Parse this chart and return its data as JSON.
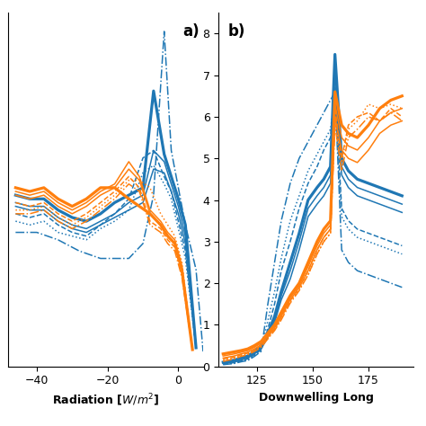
{
  "panel_a_label": "a)",
  "panel_b_label": "b)",
  "xlabel_a": "Radiation [$W/m^2$]",
  "xlabel_b": "Downwelling Long",
  "ylim_a": [
    -0.3,
    9.2
  ],
  "ylim_b": [
    0,
    8.5
  ],
  "xlim_a": [
    -48,
    7
  ],
  "xlim_b": [
    108,
    195
  ],
  "yticks_b": [
    0,
    1,
    2,
    3,
    4,
    5,
    6,
    7,
    8
  ],
  "xticks_a": [
    -40,
    -20,
    0
  ],
  "xticks_b": [
    125,
    150,
    175
  ],
  "blue": "#1f77b4",
  "orange": "#ff7f0e",
  "lw_thick": 2.3,
  "lw_thin": 1.1,
  "panel_a_lines": [
    {
      "color": "blue",
      "style": "solid",
      "thick": true,
      "x": [
        -46,
        -42,
        -38,
        -34,
        -30,
        -26,
        -22,
        -18,
        -14,
        -10,
        -7,
        -4,
        -2,
        0,
        2,
        5
      ],
      "y": [
        4.3,
        4.2,
        4.2,
        3.9,
        3.7,
        3.6,
        3.8,
        4.1,
        4.3,
        4.5,
        7.1,
        5.4,
        4.8,
        4.2,
        3.5,
        0.2
      ]
    },
    {
      "color": "blue",
      "style": "solid",
      "thick": false,
      "x": [
        -46,
        -42,
        -38,
        -34,
        -30,
        -26,
        -22,
        -18,
        -14,
        -10,
        -7,
        -4,
        -2,
        0,
        2,
        5
      ],
      "y": [
        4.1,
        4.0,
        4.0,
        3.7,
        3.5,
        3.4,
        3.6,
        3.8,
        4.1,
        4.3,
        5.5,
        5.2,
        4.6,
        4.0,
        3.2,
        0.2
      ]
    },
    {
      "color": "blue",
      "style": "solid",
      "thick": false,
      "x": [
        -46,
        -42,
        -38,
        -34,
        -30,
        -26,
        -22,
        -18,
        -14,
        -10,
        -7,
        -4,
        -2,
        0,
        2,
        5
      ],
      "y": [
        4.0,
        3.9,
        3.9,
        3.6,
        3.4,
        3.3,
        3.5,
        3.7,
        3.9,
        4.1,
        5.0,
        4.9,
        4.4,
        3.8,
        3.0,
        0.2
      ]
    },
    {
      "color": "blue",
      "style": "dashed",
      "thick": false,
      "x": [
        -46,
        -42,
        -38,
        -34,
        -30,
        -26,
        -22,
        -18,
        -14,
        -10,
        -7,
        -4,
        -2,
        0,
        2,
        5
      ],
      "y": [
        3.8,
        3.7,
        3.8,
        3.5,
        3.3,
        3.2,
        3.5,
        3.8,
        4.2,
        5.3,
        5.5,
        4.8,
        4.4,
        3.6,
        2.8,
        0.2
      ]
    },
    {
      "color": "blue",
      "style": "dotted",
      "thick": false,
      "x": [
        -46,
        -42,
        -38,
        -34,
        -30,
        -26,
        -22,
        -18,
        -14,
        -10,
        -7,
        -4,
        -2,
        0,
        2,
        5
      ],
      "y": [
        3.6,
        3.5,
        3.6,
        3.3,
        3.2,
        3.1,
        3.4,
        3.6,
        3.9,
        4.9,
        5.1,
        4.6,
        4.2,
        3.4,
        2.6,
        0.2
      ]
    },
    {
      "color": "blue",
      "style": "dashdot",
      "thick": false,
      "x": [
        -46,
        -40,
        -34,
        -28,
        -22,
        -18,
        -14,
        -10,
        -7,
        -4,
        -2,
        0,
        2,
        5,
        7
      ],
      "y": [
        3.3,
        3.3,
        3.1,
        2.8,
        2.6,
        2.6,
        2.6,
        3.0,
        4.3,
        8.7,
        5.5,
        4.5,
        3.5,
        2.3,
        0.1
      ]
    },
    {
      "color": "orange",
      "style": "solid",
      "thick": true,
      "x": [
        -46,
        -42,
        -38,
        -34,
        -30,
        -26,
        -22,
        -18,
        -14,
        -11,
        -8,
        -5,
        -3,
        -1,
        1,
        4
      ],
      "y": [
        4.5,
        4.4,
        4.5,
        4.2,
        4.0,
        4.2,
        4.5,
        4.5,
        4.2,
        4.0,
        3.8,
        3.5,
        3.2,
        3.0,
        2.3,
        0.15
      ]
    },
    {
      "color": "orange",
      "style": "solid",
      "thick": false,
      "x": [
        -46,
        -42,
        -38,
        -34,
        -30,
        -26,
        -22,
        -18,
        -14,
        -11,
        -8,
        -5,
        -3,
        -1,
        1,
        4
      ],
      "y": [
        4.4,
        4.3,
        4.4,
        4.1,
        3.9,
        4.1,
        4.4,
        4.6,
        5.2,
        4.8,
        3.9,
        3.6,
        3.3,
        3.1,
        2.4,
        0.15
      ]
    },
    {
      "color": "orange",
      "style": "solid",
      "thick": false,
      "x": [
        -46,
        -42,
        -38,
        -34,
        -30,
        -26,
        -22,
        -18,
        -14,
        -11,
        -8,
        -5,
        -3,
        -1,
        1,
        4
      ],
      "y": [
        4.3,
        4.2,
        4.3,
        4.0,
        3.8,
        4.0,
        4.3,
        4.5,
        5.0,
        4.7,
        3.8,
        3.5,
        3.2,
        3.0,
        2.3,
        0.15
      ]
    },
    {
      "color": "orange",
      "style": "dashed",
      "thick": false,
      "x": [
        -46,
        -42,
        -38,
        -34,
        -30,
        -26,
        -22,
        -18,
        -14,
        -11,
        -8,
        -5,
        -3,
        -1,
        1,
        4
      ],
      "y": [
        4.1,
        4.0,
        4.1,
        3.8,
        3.6,
        3.8,
        4.1,
        4.4,
        4.8,
        4.5,
        3.6,
        3.4,
        3.1,
        2.9,
        2.2,
        0.15
      ]
    },
    {
      "color": "orange",
      "style": "dotted",
      "thick": false,
      "x": [
        -46,
        -42,
        -38,
        -34,
        -30,
        -26,
        -22,
        -18,
        -14,
        -11,
        -8,
        -5,
        -3,
        -1,
        1,
        4
      ],
      "y": [
        3.9,
        3.9,
        4.0,
        3.7,
        3.5,
        3.7,
        4.0,
        4.3,
        4.7,
        4.7,
        4.5,
        3.8,
        3.5,
        3.2,
        2.5,
        0.15
      ]
    },
    {
      "color": "orange",
      "style": "dashdot",
      "thick": false,
      "x": [
        -46,
        -42,
        -38,
        -34,
        -30,
        -26,
        -22,
        -18,
        -14,
        -11,
        -8,
        -5,
        -3,
        -1,
        1,
        4
      ],
      "y": [
        3.8,
        3.8,
        3.9,
        3.6,
        3.4,
        3.6,
        3.9,
        4.2,
        4.6,
        4.4,
        3.5,
        3.3,
        3.0,
        2.8,
        2.1,
        0.15
      ]
    }
  ],
  "panel_b_lines": [
    {
      "color": "blue",
      "style": "solid",
      "thick": true,
      "x": [
        110,
        115,
        118,
        121,
        124,
        127,
        130,
        133,
        136,
        140,
        144,
        148,
        152,
        155,
        158,
        160,
        163,
        166,
        170,
        175,
        180,
        185,
        190
      ],
      "y": [
        0.1,
        0.15,
        0.2,
        0.25,
        0.35,
        0.5,
        0.8,
        1.2,
        1.8,
        2.5,
        3.2,
        4.0,
        4.3,
        4.5,
        4.8,
        7.5,
        5.0,
        4.7,
        4.5,
        4.4,
        4.3,
        4.2,
        4.1
      ]
    },
    {
      "color": "blue",
      "style": "solid",
      "thick": false,
      "x": [
        110,
        115,
        118,
        121,
        124,
        127,
        130,
        133,
        136,
        140,
        144,
        148,
        152,
        155,
        158,
        160,
        163,
        166,
        170,
        175,
        180,
        185,
        190
      ],
      "y": [
        0.08,
        0.12,
        0.18,
        0.22,
        0.32,
        0.45,
        0.75,
        1.1,
        1.7,
        2.3,
        3.0,
        3.8,
        4.1,
        4.3,
        4.6,
        7.1,
        4.8,
        4.5,
        4.3,
        4.2,
        4.1,
        4.0,
        3.9
      ]
    },
    {
      "color": "blue",
      "style": "solid",
      "thick": false,
      "x": [
        110,
        115,
        118,
        121,
        124,
        127,
        130,
        133,
        136,
        140,
        144,
        148,
        152,
        155,
        158,
        160,
        163,
        166,
        170,
        175,
        180,
        185,
        190
      ],
      "y": [
        0.07,
        0.1,
        0.15,
        0.2,
        0.3,
        0.42,
        0.7,
        1.05,
        1.6,
        2.1,
        2.8,
        3.6,
        3.9,
        4.1,
        4.4,
        6.7,
        4.6,
        4.3,
        4.1,
        4.0,
        3.9,
        3.8,
        3.7
      ]
    },
    {
      "color": "blue",
      "style": "dashed",
      "thick": false,
      "x": [
        110,
        115,
        118,
        121,
        124,
        127,
        130,
        133,
        136,
        140,
        144,
        148,
        152,
        155,
        158,
        160,
        163,
        166,
        170,
        175,
        180,
        185,
        190
      ],
      "y": [
        0.06,
        0.09,
        0.13,
        0.18,
        0.28,
        0.4,
        0.9,
        1.5,
        2.3,
        3.0,
        3.8,
        4.4,
        4.8,
        5.2,
        5.5,
        6.7,
        3.8,
        3.5,
        3.3,
        3.2,
        3.1,
        3.0,
        2.9
      ]
    },
    {
      "color": "blue",
      "style": "dotted",
      "thick": false,
      "x": [
        110,
        115,
        118,
        121,
        124,
        127,
        130,
        133,
        136,
        140,
        144,
        148,
        152,
        155,
        158,
        160,
        163,
        166,
        170,
        175,
        180,
        185,
        190
      ],
      "y": [
        0.05,
        0.08,
        0.12,
        0.16,
        0.26,
        0.38,
        1.1,
        1.8,
        2.6,
        3.5,
        4.1,
        4.7,
        5.1,
        5.4,
        5.7,
        6.5,
        3.6,
        3.3,
        3.1,
        3.0,
        2.9,
        2.8,
        2.7
      ]
    },
    {
      "color": "blue",
      "style": "dashdot",
      "thick": false,
      "x": [
        110,
        115,
        118,
        121,
        124,
        127,
        130,
        133,
        136,
        140,
        144,
        148,
        152,
        155,
        158,
        160,
        163,
        166,
        170,
        175,
        180,
        185,
        190
      ],
      "y": [
        0.04,
        0.07,
        0.11,
        0.14,
        0.24,
        0.36,
        1.5,
        2.5,
        3.5,
        4.4,
        5.0,
        5.4,
        5.8,
        6.1,
        6.4,
        6.6,
        2.8,
        2.5,
        2.3,
        2.2,
        2.1,
        2.0,
        1.9
      ]
    },
    {
      "color": "orange",
      "style": "solid",
      "thick": true,
      "x": [
        110,
        115,
        118,
        121,
        124,
        127,
        130,
        133,
        136,
        140,
        144,
        148,
        152,
        155,
        158,
        160,
        163,
        166,
        170,
        175,
        180,
        185,
        190
      ],
      "y": [
        0.3,
        0.35,
        0.38,
        0.42,
        0.5,
        0.6,
        0.8,
        1.0,
        1.3,
        1.7,
        2.0,
        2.5,
        3.0,
        3.3,
        3.5,
        6.6,
        5.8,
        5.6,
        5.5,
        5.8,
        6.2,
        6.4,
        6.5
      ]
    },
    {
      "color": "orange",
      "style": "solid",
      "thick": false,
      "x": [
        110,
        115,
        118,
        121,
        124,
        127,
        130,
        133,
        136,
        140,
        144,
        148,
        152,
        155,
        158,
        160,
        163,
        166,
        170,
        175,
        180,
        185,
        190
      ],
      "y": [
        0.25,
        0.3,
        0.34,
        0.38,
        0.46,
        0.56,
        0.76,
        0.96,
        1.25,
        1.65,
        1.95,
        2.4,
        2.9,
        3.2,
        3.4,
        6.3,
        5.5,
        5.3,
        5.2,
        5.5,
        5.9,
        6.1,
        6.2
      ]
    },
    {
      "color": "orange",
      "style": "solid",
      "thick": false,
      "x": [
        110,
        115,
        118,
        121,
        124,
        127,
        130,
        133,
        136,
        140,
        144,
        148,
        152,
        155,
        158,
        160,
        163,
        166,
        170,
        175,
        180,
        185,
        190
      ],
      "y": [
        0.2,
        0.25,
        0.3,
        0.34,
        0.42,
        0.52,
        0.72,
        0.92,
        1.2,
        1.6,
        1.9,
        2.3,
        2.8,
        3.1,
        3.3,
        6.0,
        5.2,
        5.0,
        4.9,
        5.2,
        5.6,
        5.8,
        5.9
      ]
    },
    {
      "color": "orange",
      "style": "dashed",
      "thick": false,
      "x": [
        110,
        115,
        118,
        121,
        124,
        127,
        130,
        133,
        136,
        140,
        144,
        148,
        152,
        155,
        158,
        160,
        163,
        166,
        170,
        175,
        180,
        185,
        190
      ],
      "y": [
        0.18,
        0.22,
        0.28,
        0.32,
        0.4,
        0.5,
        0.7,
        0.9,
        1.18,
        1.58,
        1.88,
        2.3,
        2.8,
        3.1,
        3.3,
        6.2,
        5.0,
        5.8,
        6.0,
        6.1,
        5.9,
        6.2,
        6.0
      ]
    },
    {
      "color": "orange",
      "style": "dotted",
      "thick": false,
      "x": [
        110,
        115,
        118,
        121,
        124,
        127,
        130,
        133,
        136,
        140,
        144,
        148,
        152,
        155,
        158,
        160,
        163,
        166,
        170,
        175,
        180,
        185,
        190
      ],
      "y": [
        0.15,
        0.2,
        0.26,
        0.3,
        0.38,
        0.48,
        0.68,
        0.88,
        1.15,
        1.55,
        1.85,
        2.2,
        2.7,
        3.0,
        3.2,
        6.0,
        4.9,
        5.7,
        5.9,
        6.3,
        6.2,
        6.3,
        6.2
      ]
    },
    {
      "color": "orange",
      "style": "dashdot",
      "thick": false,
      "x": [
        110,
        115,
        118,
        121,
        124,
        127,
        130,
        133,
        136,
        140,
        144,
        148,
        152,
        155,
        158,
        160,
        163,
        166,
        170,
        175,
        180,
        185,
        190
      ],
      "y": [
        0.12,
        0.18,
        0.24,
        0.28,
        0.36,
        0.46,
        0.66,
        0.86,
        1.12,
        1.52,
        1.82,
        2.2,
        2.7,
        3.0,
        3.2,
        5.8,
        4.7,
        5.5,
        5.7,
        6.0,
        5.9,
        6.1,
        5.9
      ]
    }
  ]
}
